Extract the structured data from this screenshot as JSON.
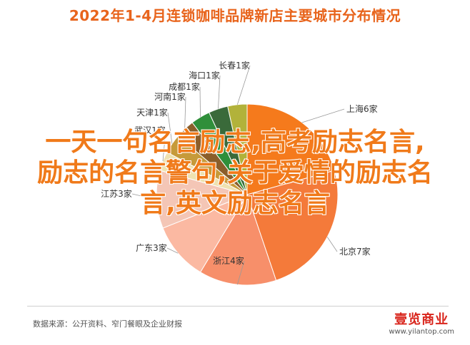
{
  "chart_data": {
    "type": "pie",
    "title": "2022年1-4月连锁咖啡品牌新店主要城市分布情况",
    "categories": [
      "上海",
      "北京",
      "浙江",
      "广东",
      "江苏",
      "武汉",
      "天津",
      "河南",
      "成都",
      "海口",
      "长春"
    ],
    "values": [
      6,
      7,
      4,
      3,
      3,
      1,
      1,
      1,
      1,
      1,
      1
    ],
    "labels": [
      "上海6家",
      "北京7家",
      "浙江4家",
      "广东3家",
      "江苏3家",
      "武汉1家",
      "天津1家",
      "河南1家",
      "成都1家",
      "海口1家",
      "长春1家"
    ],
    "colors": [
      "#f57a1c",
      "#f47a3a",
      "#f78f6a",
      "#fbb9a2",
      "#f4c6b6",
      "#efe2b0",
      "#c69a3a",
      "#8b5e2a",
      "#2f8f3a",
      "#3a6a3a",
      "#b2b23a"
    ]
  },
  "overlay": {
    "line1": "一天一句名言励志,高考励志名言,",
    "line2": "励志的名言警句,关于爱情的励志名",
    "line3": "言,英文励志名言"
  },
  "footer": {
    "source": "数据来源：公开资料、窄门餐眼及企业财报",
    "brand_logo": "壹览商业",
    "brand_url": "www.yilantop.com"
  }
}
